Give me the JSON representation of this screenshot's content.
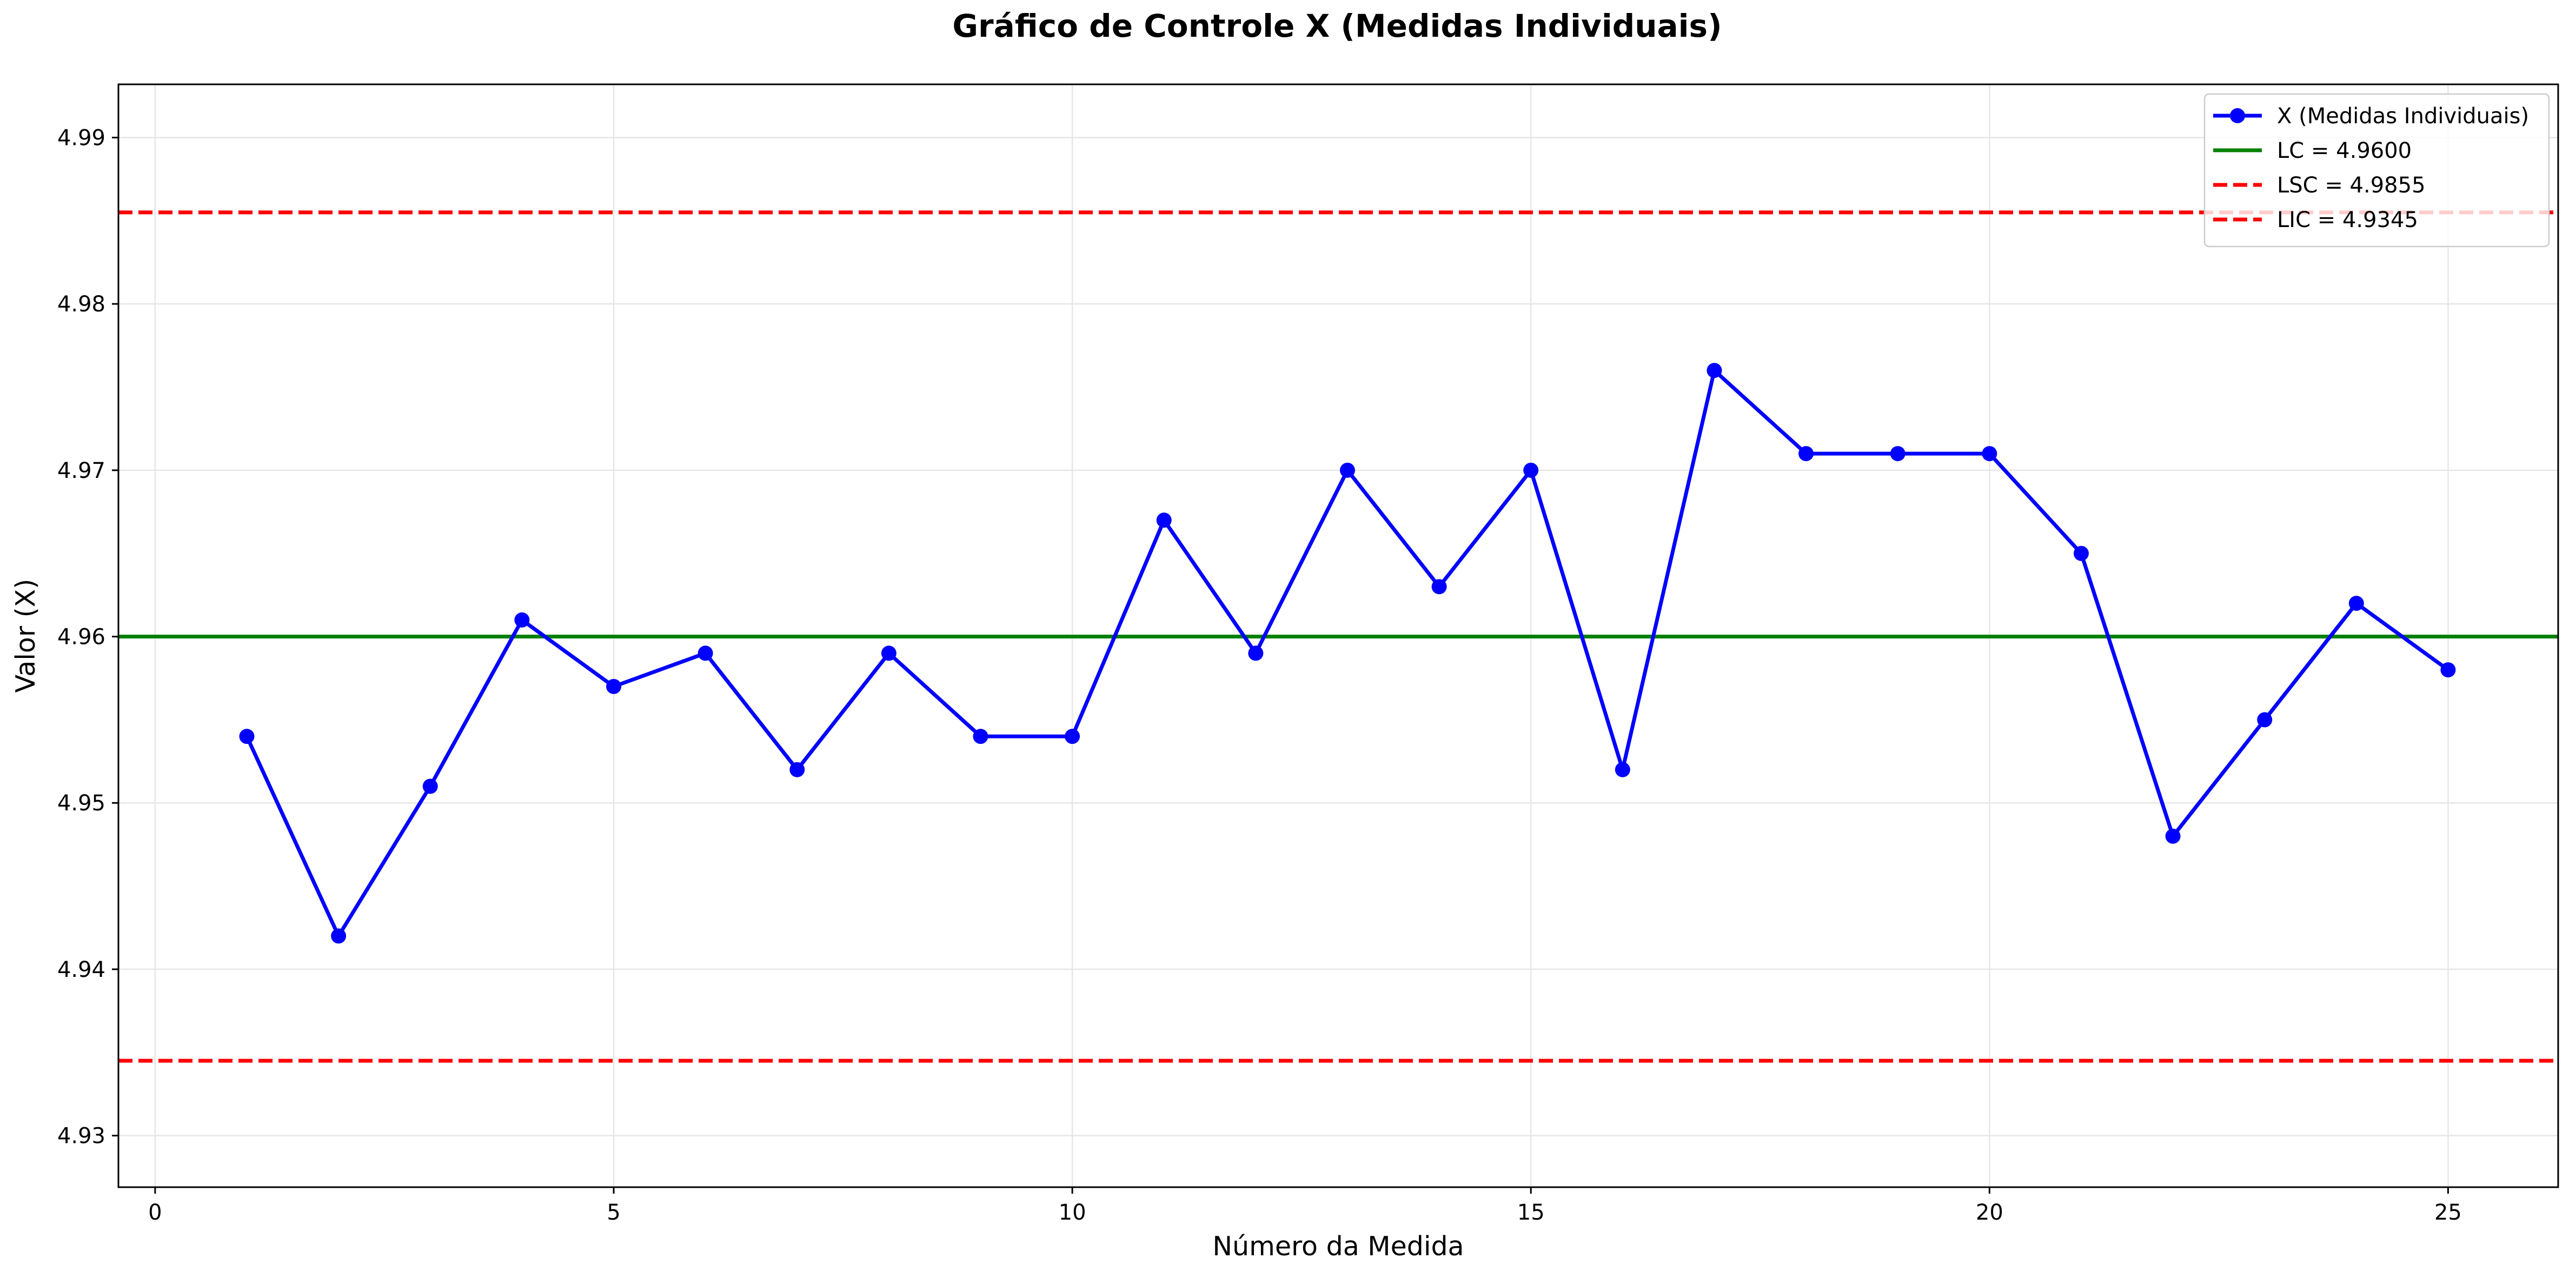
{
  "chart_data": {
    "type": "line",
    "title": "Gráfico de Controle X (Medidas Individuais)",
    "xlabel": "Número da Medida",
    "ylabel": "Valor (X)",
    "xlim": [
      -0.4,
      26.2
    ],
    "ylim": [
      4.9269,
      4.9932
    ],
    "xticks": [
      0,
      5,
      10,
      15,
      20,
      25
    ],
    "yticks": [
      4.93,
      4.94,
      4.95,
      4.96,
      4.97,
      4.98,
      4.99
    ],
    "xtick_labels": [
      "0",
      "5",
      "10",
      "15",
      "20",
      "25"
    ],
    "ytick_labels": [
      "4.93",
      "4.94",
      "4.95",
      "4.96",
      "4.97",
      "4.98",
      "4.99"
    ],
    "grid": true,
    "legend_position": "top-right",
    "x": [
      1,
      2,
      3,
      4,
      5,
      6,
      7,
      8,
      9,
      10,
      11,
      12,
      13,
      14,
      15,
      16,
      17,
      18,
      19,
      20,
      21,
      22,
      23,
      24,
      25
    ],
    "series": [
      {
        "name": "X (Medidas Individuais)",
        "color": "#0000ff",
        "marker": "circle",
        "values": [
          4.954,
          4.942,
          4.951,
          4.961,
          4.957,
          4.959,
          4.952,
          4.959,
          4.954,
          4.954,
          4.967,
          4.959,
          4.97,
          4.963,
          4.97,
          4.952,
          4.976,
          4.971,
          4.971,
          4.971,
          4.965,
          4.948,
          4.955,
          4.962,
          4.958
        ]
      }
    ],
    "reference_lines": [
      {
        "name": "LC = 4.9600",
        "value": 4.96,
        "color": "#008000",
        "style": "solid"
      },
      {
        "name": "LSC = 4.9855",
        "value": 4.9855,
        "color": "#ff0000",
        "style": "dashed"
      },
      {
        "name": "LIC = 4.9345",
        "value": 4.9345,
        "color": "#ff0000",
        "style": "dashed"
      }
    ]
  }
}
